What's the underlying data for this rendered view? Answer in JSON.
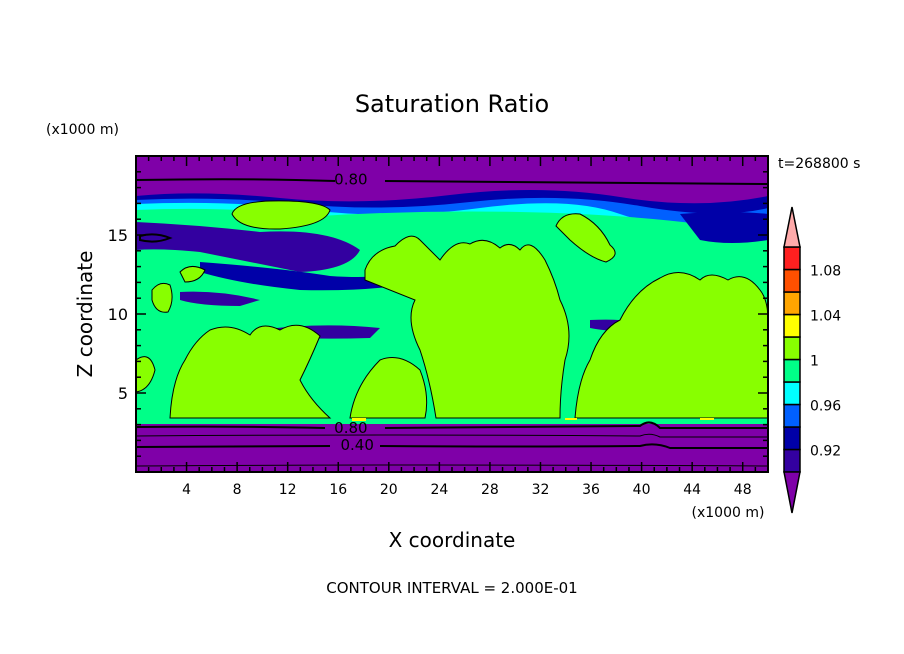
{
  "chart_data": {
    "type": "contour",
    "title": "Saturation Ratio",
    "xlabel": "X coordinate",
    "ylabel": "Z coordinate",
    "x_units": "(x1000 m)",
    "y_units": "(x1000 m)",
    "xlim": [
      0,
      50
    ],
    "ylim": [
      0,
      20
    ],
    "x_ticks": [
      4,
      8,
      12,
      16,
      20,
      24,
      28,
      32,
      36,
      40,
      44,
      48
    ],
    "y_ticks": [
      5,
      10,
      15
    ],
    "time_label": "t=268800 s",
    "footer": "CONTOUR INTERVAL = 2.000E-01",
    "contour_labels": [
      {
        "text": "0.80",
        "x": 17,
        "z": 18.5
      },
      {
        "text": "0.80",
        "x": 17,
        "z": 2.8
      },
      {
        "text": "0.40",
        "x": 17.5,
        "z": 1.7
      }
    ],
    "colorbar": {
      "levels": [
        0.9,
        0.92,
        0.94,
        0.96,
        0.98,
        1.0,
        1.02,
        1.04,
        1.06,
        1.08,
        1.1
      ],
      "tick_labels": [
        {
          "value": 0.92,
          "text": "0.92"
        },
        {
          "value": 0.96,
          "text": "0.96"
        },
        {
          "value": 1.0,
          "text": "1"
        },
        {
          "value": 1.04,
          "text": "1.04"
        },
        {
          "value": 1.08,
          "text": "1.08"
        }
      ],
      "colors": [
        "#3300a0",
        "#0000a8",
        "#0060ff",
        "#00ffff",
        "#00ff88",
        "#88ff00",
        "#ffff00",
        "#ffa500",
        "#ff5000",
        "#ff2020"
      ],
      "under_color": "#7f00a8",
      "over_color": "#ffaaaa"
    }
  }
}
